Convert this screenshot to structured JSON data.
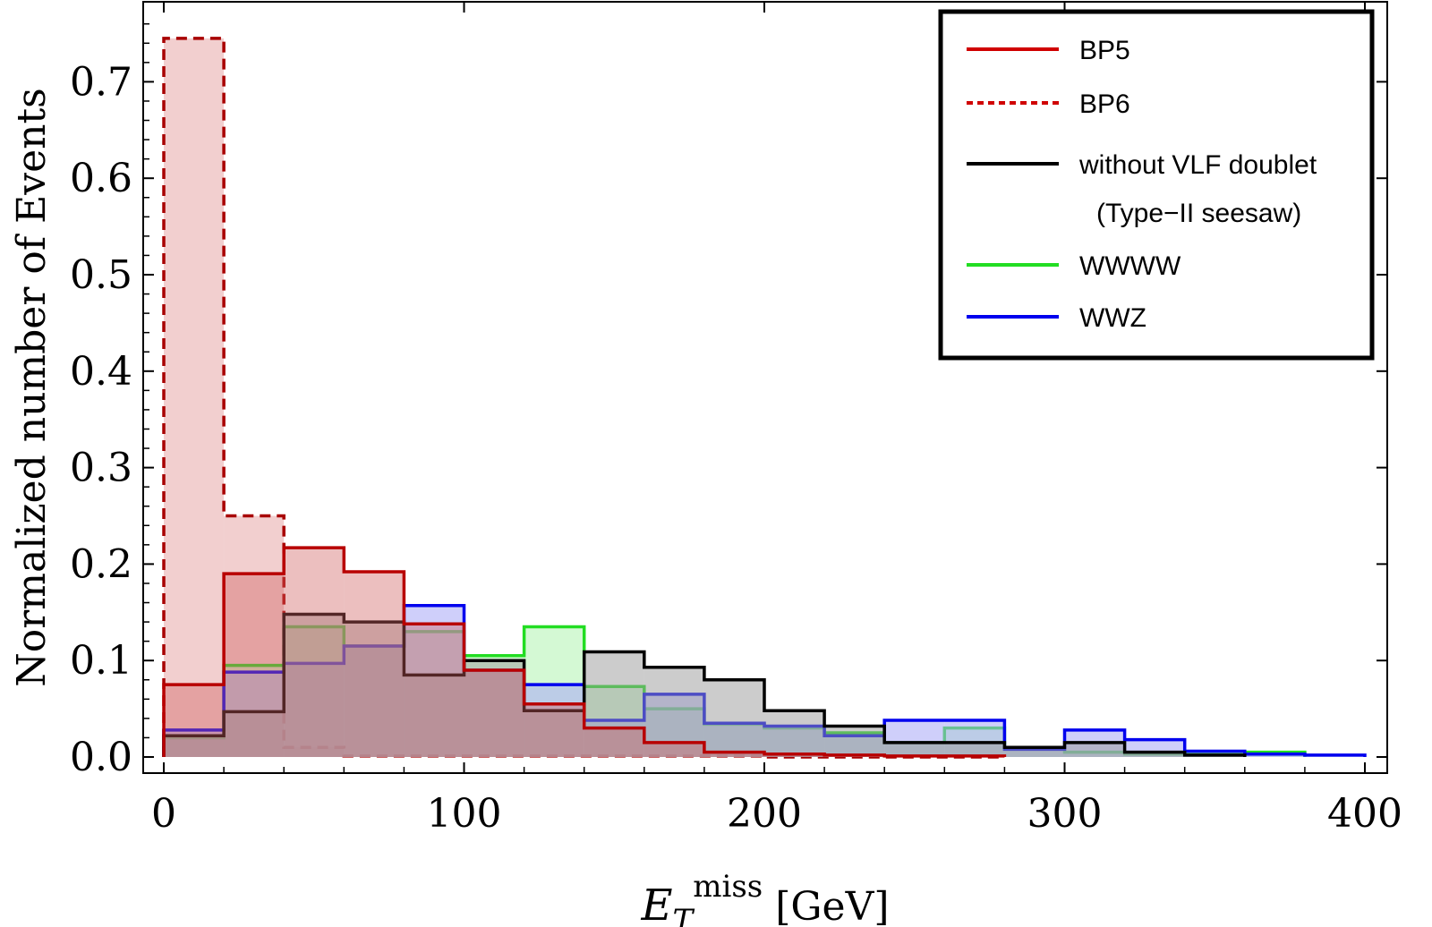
{
  "chart_data": {
    "type": "histogram",
    "title": "",
    "xlabel": {
      "main": "E",
      "sub": "T",
      "sup": "miss",
      "unit": " [GeV]"
    },
    "ylabel": "Normalized number of Events",
    "xlim": [
      -8,
      410
    ],
    "ylim": [
      -0.02,
      0.785
    ],
    "xticks": [
      0,
      100,
      200,
      300,
      400
    ],
    "xtick_labels": [
      "0",
      "100",
      "200",
      "300",
      "400"
    ],
    "yticks": [
      0.0,
      0.1,
      0.2,
      0.3,
      0.4,
      0.5,
      0.6,
      0.7
    ],
    "ytick_labels": [
      "0.0",
      "0.1",
      "0.2",
      "0.3",
      "0.4",
      "0.5",
      "0.6",
      "0.7"
    ],
    "bin_width": 20,
    "legend_position": "top-right",
    "series": [
      {
        "name": "BP6",
        "key": "bp6",
        "color": "#A80000",
        "fill": "#E8A7A7",
        "fill_opacity": 0.55,
        "dashed": true,
        "values": [
          0.745,
          0.25,
          0.01,
          0.001,
          0.001,
          0.001,
          0.001,
          0.001,
          0.001,
          0.001,
          0.0,
          0.0,
          0.0,
          0.0
        ]
      },
      {
        "name": "WWWW",
        "key": "wwww",
        "color": "#22DD22",
        "fill": "#B8F5B8",
        "fill_opacity": 0.6,
        "dashed": false,
        "values": [
          0.02,
          0.095,
          0.135,
          0.115,
          0.13,
          0.105,
          0.135,
          0.073,
          0.05,
          0.034,
          0.03,
          0.025,
          0.015,
          0.03,
          0.01,
          0.005,
          0.003,
          0.003,
          0.005
        ]
      },
      {
        "name": "WWZ",
        "key": "wwz",
        "color": "#0000EE",
        "fill": "#A8A8F5",
        "fill_opacity": 0.55,
        "dashed": false,
        "values": [
          0.028,
          0.088,
          0.097,
          0.115,
          0.157,
          0.09,
          0.075,
          0.038,
          0.065,
          0.035,
          0.032,
          0.022,
          0.038,
          0.038,
          0.008,
          0.028,
          0.018,
          0.006,
          0.003,
          0.002
        ]
      },
      {
        "name": "without VLF doublet",
        "name2": "(Type-II seesaw)",
        "key": "vlf",
        "color": "#000000",
        "fill": "#9A9A9A",
        "fill_opacity": 0.5,
        "dashed": false,
        "values": [
          0.022,
          0.047,
          0.148,
          0.14,
          0.085,
          0.1,
          0.048,
          0.109,
          0.093,
          0.08,
          0.048,
          0.032,
          0.015,
          0.015,
          0.01,
          0.015,
          0.005,
          0.002
        ]
      },
      {
        "name": "BP5",
        "key": "bp5",
        "color": "#B80000",
        "fill": "#D06060",
        "fill_opacity": 0.4,
        "dashed": false,
        "values": [
          0.075,
          0.19,
          0.217,
          0.192,
          0.138,
          0.09,
          0.055,
          0.03,
          0.015,
          0.005,
          0.003,
          0.002,
          0.001,
          0.001
        ]
      }
    ],
    "legend": [
      {
        "label": "BP5",
        "color": "#D00000",
        "dashed": false
      },
      {
        "label": "BP6",
        "color": "#D00000",
        "dashed": true
      },
      {
        "label": "without VLF doublet",
        "color": "#000000",
        "dashed": false
      },
      {
        "label": "(Type−II seesaw)",
        "color": null,
        "dashed": false
      },
      {
        "label": "WWWW",
        "color": "#22DD22",
        "dashed": false
      },
      {
        "label": "WWZ",
        "color": "#0000EE",
        "dashed": false
      }
    ]
  }
}
